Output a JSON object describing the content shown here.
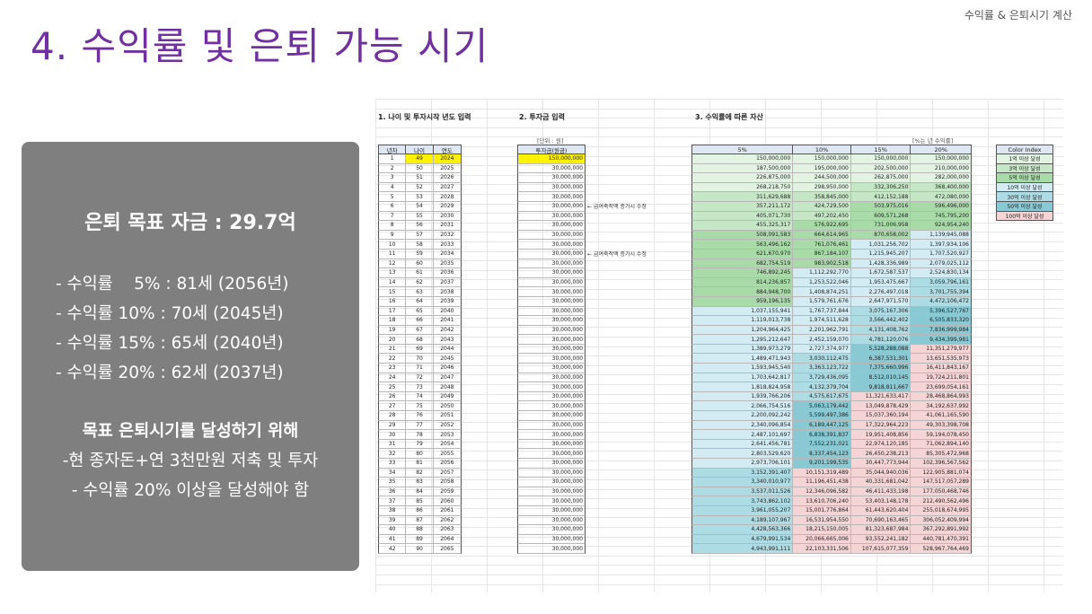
{
  "corner_label": "수익률 & 은퇴시기 계산",
  "title": "4. 수익률 및 은퇴 가능 시기",
  "summary": {
    "goal": "은퇴 목표 자금 : 29.7억",
    "rates": [
      "- 수익률    5% : 81세 (2056년)",
      "- 수익률 10% : 70세 (2045년)",
      "- 수익률 15% : 65세 (2040년)",
      "- 수익률 20% : 62세 (2037년)"
    ],
    "strategy_head": "목표 은퇴시기를 달성하기 위해",
    "strategy_lines": [
      "-현 종자돈+연 3천만원 저축 및 투자",
      "- 수익률 20% 이상을 달성해야 함"
    ]
  },
  "sheet": {
    "section1": "1. 나이 및 투자시작 년도 입력",
    "section2": "2. 투자금 입력",
    "section3": "3. 수익률에 따른 자산",
    "unit_note": "[단위 : 원]",
    "rate_note": "[%는 년 수익률]",
    "headers_left": [
      "년차",
      "나이",
      "연도"
    ],
    "header_invest": "투자금(원금)",
    "headers_rates": [
      "5%",
      "10%",
      "15%",
      "20%"
    ],
    "memos": [
      {
        "row": 5,
        "text": "← 급여축적액 증가시 수정"
      },
      {
        "row": 10,
        "text": "← 급여축적액 증가시 수정"
      }
    ],
    "legend_header": "Color Index",
    "legend": [
      {
        "label": "1억 이상 달성",
        "color": "#e2f3e2"
      },
      {
        "label": "3억 이상 달성",
        "color": "#c6e7c6"
      },
      {
        "label": "5억 이상 달성",
        "color": "#a9dba9"
      },
      {
        "label": "10억 이상 달성",
        "color": "#d3ecf3"
      },
      {
        "label": "30억 이상 달성",
        "color": "#aedce4"
      },
      {
        "label": "50억 이상 달성",
        "color": "#89c9d3"
      },
      {
        "label": "100억 이상 달성",
        "color": "#f4d4d4"
      }
    ],
    "rows": [
      [
        "1",
        "49",
        "2024",
        "150,000,000",
        "150,000,000",
        "150,000,000",
        "150,000,000",
        "150,000,000"
      ],
      [
        "2",
        "50",
        "2025",
        "30,000,000",
        "187,500,000",
        "195,000,000",
        "202,500,000",
        "210,000,000"
      ],
      [
        "3",
        "51",
        "2026",
        "30,000,000",
        "226,875,000",
        "244,500,000",
        "262,875,000",
        "282,000,000"
      ],
      [
        "4",
        "52",
        "2027",
        "30,000,000",
        "268,218,750",
        "298,950,000",
        "332,306,250",
        "368,400,000"
      ],
      [
        "5",
        "53",
        "2028",
        "30,000,000",
        "311,629,688",
        "358,845,000",
        "412,152,188",
        "472,080,000"
      ],
      [
        "6",
        "54",
        "2029",
        "30,000,000",
        "357,211,172",
        "424,729,500",
        "503,975,016",
        "596,496,000"
      ],
      [
        "7",
        "55",
        "2030",
        "30,000,000",
        "405,071,730",
        "497,202,450",
        "609,571,268",
        "745,795,200"
      ],
      [
        "8",
        "56",
        "2031",
        "30,000,000",
        "455,325,317",
        "576,922,695",
        "731,006,958",
        "924,954,240"
      ],
      [
        "9",
        "57",
        "2032",
        "30,000,000",
        "508,091,583",
        "664,614,965",
        "870,658,002",
        "1,139,945,088"
      ],
      [
        "10",
        "58",
        "2033",
        "30,000,000",
        "563,496,162",
        "761,076,461",
        "1,031,256,702",
        "1,397,934,106"
      ],
      [
        "11",
        "59",
        "2034",
        "30,000,000",
        "621,670,970",
        "867,184,107",
        "1,215,945,207",
        "1,707,520,927"
      ],
      [
        "12",
        "60",
        "2035",
        "30,000,000",
        "682,754,519",
        "983,902,518",
        "1,428,336,989",
        "2,079,025,112"
      ],
      [
        "13",
        "61",
        "2036",
        "30,000,000",
        "746,892,245",
        "1,112,292,770",
        "1,672,587,537",
        "2,524,830,134"
      ],
      [
        "14",
        "62",
        "2037",
        "30,000,000",
        "814,236,857",
        "1,253,522,046",
        "1,953,475,667",
        "3,059,796,161"
      ],
      [
        "15",
        "63",
        "2038",
        "30,000,000",
        "884,948,700",
        "1,408,874,251",
        "2,276,497,018",
        "3,701,755,394"
      ],
      [
        "16",
        "64",
        "2039",
        "30,000,000",
        "959,196,135",
        "1,579,761,676",
        "2,647,971,570",
        "4,472,106,472"
      ],
      [
        "17",
        "65",
        "2040",
        "30,000,000",
        "1,037,155,941",
        "1,767,737,844",
        "3,075,167,306",
        "5,396,527,767"
      ],
      [
        "18",
        "66",
        "2041",
        "30,000,000",
        "1,119,013,738",
        "1,974,511,628",
        "3,566,442,402",
        "6,505,833,320"
      ],
      [
        "19",
        "67",
        "2042",
        "30,000,000",
        "1,204,964,425",
        "2,201,962,791",
        "4,131,408,762",
        "7,836,999,984"
      ],
      [
        "20",
        "68",
        "2043",
        "30,000,000",
        "1,295,212,647",
        "2,452,159,070",
        "4,781,120,076",
        "9,434,399,981"
      ],
      [
        "21",
        "69",
        "2044",
        "30,000,000",
        "1,389,973,279",
        "2,727,374,977",
        "5,528,288,088",
        "11,351,279,977"
      ],
      [
        "22",
        "70",
        "2045",
        "30,000,000",
        "1,489,471,943",
        "3,030,112,475",
        "6,387,531,301",
        "13,651,535,973"
      ],
      [
        "23",
        "71",
        "2046",
        "30,000,000",
        "1,593,945,540",
        "3,363,123,722",
        "7,375,660,996",
        "16,411,843,167"
      ],
      [
        "24",
        "72",
        "2047",
        "30,000,000",
        "1,703,642,817",
        "3,729,436,095",
        "8,512,010,145",
        "19,724,211,801"
      ],
      [
        "25",
        "73",
        "2048",
        "30,000,000",
        "1,818,824,958",
        "4,132,379,704",
        "9,818,811,667",
        "23,699,054,161"
      ],
      [
        "26",
        "74",
        "2049",
        "30,000,000",
        "1,939,766,206",
        "4,575,617,675",
        "11,321,633,417",
        "28,468,864,993"
      ],
      [
        "27",
        "75",
        "2050",
        "30,000,000",
        "2,066,754,516",
        "5,063,179,442",
        "13,049,878,429",
        "34,192,637,992"
      ],
      [
        "28",
        "76",
        "2051",
        "30,000,000",
        "2,200,092,242",
        "5,599,497,386",
        "15,037,360,194",
        "41,061,165,590"
      ],
      [
        "29",
        "77",
        "2052",
        "30,000,000",
        "2,340,096,854",
        "6,189,447,125",
        "17,322,964,223",
        "49,303,398,708"
      ],
      [
        "30",
        "78",
        "2053",
        "30,000,000",
        "2,487,101,697",
        "6,838,391,837",
        "19,951,408,856",
        "59,194,078,450"
      ],
      [
        "31",
        "79",
        "2054",
        "30,000,000",
        "2,641,456,781",
        "7,552,231,021",
        "22,974,120,185",
        "71,062,894,140"
      ],
      [
        "32",
        "80",
        "2055",
        "30,000,000",
        "2,803,529,620",
        "8,337,454,123",
        "26,450,238,213",
        "85,305,472,968"
      ],
      [
        "33",
        "81",
        "2056",
        "30,000,000",
        "2,973,706,101",
        "9,201,199,535",
        "30,447,773,944",
        "102,396,567,562"
      ],
      [
        "34",
        "82",
        "2057",
        "30,000,000",
        "3,152,391,407",
        "10,151,319,489",
        "35,044,940,036",
        "122,905,881,074"
      ],
      [
        "35",
        "83",
        "2058",
        "30,000,000",
        "3,340,010,977",
        "11,196,451,438",
        "40,331,681,042",
        "147,517,057,289"
      ],
      [
        "36",
        "84",
        "2059",
        "30,000,000",
        "3,537,011,526",
        "12,346,096,582",
        "46,411,433,198",
        "177,050,468,746"
      ],
      [
        "37",
        "85",
        "2060",
        "30,000,000",
        "3,743,862,102",
        "13,610,706,240",
        "53,403,148,178",
        "212,490,562,496"
      ],
      [
        "38",
        "86",
        "2061",
        "30,000,000",
        "3,961,055,207",
        "15,001,776,864",
        "61,443,620,404",
        "255,018,674,995"
      ],
      [
        "39",
        "87",
        "2062",
        "30,000,000",
        "4,189,107,967",
        "16,531,954,550",
        "70,690,163,465",
        "306,052,409,994"
      ],
      [
        "40",
        "88",
        "2063",
        "30,000,000",
        "4,428,563,366",
        "18,215,150,005",
        "81,323,687,984",
        "367,292,891,992"
      ],
      [
        "41",
        "89",
        "2064",
        "30,000,000",
        "4,679,991,534",
        "20,066,665,006",
        "93,552,241,182",
        "440,781,470,391"
      ],
      [
        "42",
        "90",
        "2065",
        "30,000,000",
        "4,943,991,111",
        "22,103,331,506",
        "107,615,077,359",
        "528,967,764,469"
      ]
    ]
  }
}
